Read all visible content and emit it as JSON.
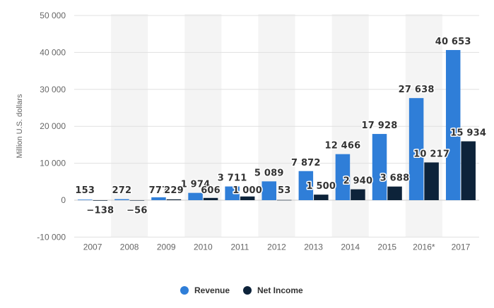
{
  "chart_data": {
    "type": "bar",
    "categories": [
      "2007",
      "2008",
      "2009",
      "2010",
      "2011",
      "2012",
      "2013",
      "2014",
      "2015",
      "2016*",
      "2017"
    ],
    "series": [
      {
        "name": "Revenue",
        "color": "#2f7ed8",
        "values": [
          153,
          272,
          777,
          1974,
          3711,
          5089,
          7872,
          12466,
          17928,
          27638,
          40653
        ],
        "labels": [
          "153",
          "272",
          "777",
          "1 974",
          "3 711",
          "5 089",
          "7 872",
          "12 466",
          "17 928",
          "27 638",
          "40 653"
        ]
      },
      {
        "name": "Net Income",
        "color": "#0d233a",
        "values": [
          -138,
          -56,
          229,
          606,
          1000,
          53,
          1500,
          2940,
          3688,
          10217,
          15934
        ],
        "labels": [
          "−138",
          "−56",
          "229",
          "606",
          "1 000",
          "53",
          "1 500",
          "2 940",
          "3 688",
          "10 217",
          "15 934"
        ]
      }
    ],
    "ylabel": "Million U.S. dollars",
    "ylim": [
      -10000,
      50000
    ],
    "yticks": [
      -10000,
      0,
      10000,
      20000,
      30000,
      40000,
      50000
    ],
    "ytick_labels": [
      "-10 000",
      "0",
      "10 000",
      "20 000",
      "30 000",
      "40 000",
      "50 000"
    ],
    "grid": true,
    "legend_position": "bottom-center",
    "band_color": "#f4f4f4",
    "grid_color": "#e0e0e0"
  }
}
